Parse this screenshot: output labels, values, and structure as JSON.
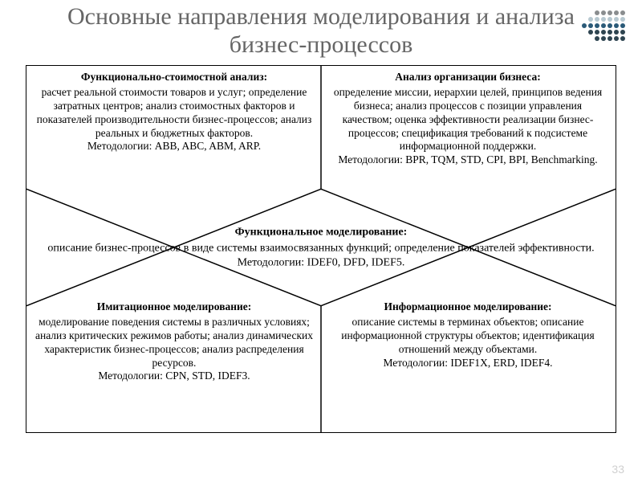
{
  "title": "Основные направления моделирования и анализа бизнес-процессов",
  "page_number": "33",
  "logo_colors": {
    "gray": "#8a8d8f",
    "light": "#b7c8d0",
    "blue": "#2a5a78",
    "dark": "#2e4450"
  },
  "blocks": {
    "top_left": {
      "heading": "Функционально-стоимостной анализ:",
      "body": "расчет реальной стоимости товаров и услуг; определение затратных центров; анализ стоимостных факторов и показателей производительности бизнес-процессов; анализ реальных и бюджетных факторов.\nМетодологии: ABB, ABC, ABM, ARP."
    },
    "top_right": {
      "heading": "Анализ организации бизнеса:",
      "body": "определение миссии, иерархии целей, принципов ведения бизнеса; анализ процессов с позиции управления качеством; оценка эффективности реализации бизнес-процессов; спецификация требований к подсистеме информационной поддержки.\nМетодологии: BPR, TQM, STD, CPI, BPI, Benchmarking."
    },
    "center": {
      "heading": "Функциональное моделирование:",
      "body": "описание бизнес-процессов в виде системы взаимосвязанных функций; определение показателей эффективности.\nМетодологии: IDEF0, DFD, IDEF5."
    },
    "bottom_left": {
      "heading": "Имитационное моделирование:",
      "body": "моделирование поведения системы в различных условиях; анализ критических режимов работы; анализ динамических характеристик бизнес-процессов; анализ распределения ресурсов.\nМетодологии: CPN, STD, IDEF3."
    },
    "bottom_right": {
      "heading": "Информационное моделирование:",
      "body": "описание системы в терминах объектов; описание информационной структуры объектов; идентификация отношений между объектами.\nМетодологии: IDEF1X, ERD, IDEF4."
    }
  },
  "diagram_style": {
    "border_color": "#000000",
    "border_width": 1.5,
    "diamond_stroke": "#000000",
    "diamond_stroke_width": 1.5,
    "background": "#ffffff",
    "cell_fontsize": 13.5,
    "heading_weight": "bold"
  }
}
